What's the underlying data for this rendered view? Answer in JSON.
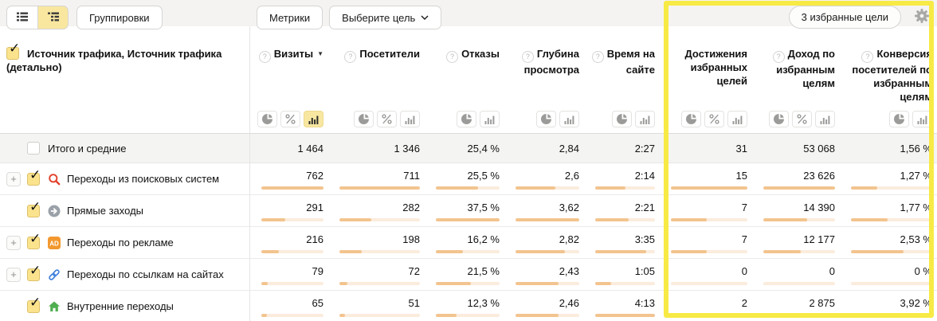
{
  "toolbar": {
    "view_toggle": [
      {
        "id": "list-view",
        "icon": "list-icon",
        "active": false
      },
      {
        "id": "tree-view",
        "icon": "tree-icon",
        "active": true
      }
    ],
    "groupings_label": "Группировки",
    "metrics_label": "Метрики",
    "select_goal_label": "Выберите цель",
    "favorite_goals_label": "3 избранные цели",
    "settings_icon": "gear-icon"
  },
  "colors": {
    "highlight_border": "#f8ea45",
    "bar_fill": "#f3c48f",
    "bar_track": "#fbecdd",
    "active_button_bg": "#f8e7a0",
    "totals_row_bg": "#f4f4f2",
    "toolbar_bg": "#f4f3f1"
  },
  "dimension_header": {
    "label": "Источник трафика, Источник трафика (детально)",
    "checked": true
  },
  "columns": [
    {
      "id": "visits",
      "label": "Визиты",
      "has_help": true,
      "sorted": "desc",
      "views": [
        "pie",
        "percent",
        "bars"
      ],
      "active_view": "bars"
    },
    {
      "id": "visitors",
      "label": "Посетители",
      "has_help": true,
      "sorted": null,
      "views": [
        "pie",
        "percent",
        "bars"
      ],
      "active_view": null
    },
    {
      "id": "bounces",
      "label": "Отказы",
      "has_help": true,
      "sorted": null,
      "views": [
        "pie",
        "bars"
      ],
      "active_view": null
    },
    {
      "id": "depth",
      "label": "Глубина просмотра",
      "has_help": true,
      "sorted": null,
      "views": [
        "pie",
        "bars"
      ],
      "active_view": null
    },
    {
      "id": "time_on_site",
      "label": "Время на сайте",
      "has_help": true,
      "sorted": null,
      "views": [
        "pie",
        "bars"
      ],
      "active_view": null
    },
    {
      "id": "goal_reaches",
      "label": "Достижения избранных целей",
      "has_help": false,
      "sorted": null,
      "views": [
        "pie",
        "percent",
        "bars"
      ],
      "active_view": null
    },
    {
      "id": "revenue",
      "label": "Доход по избранным целям",
      "has_help": true,
      "sorted": null,
      "views": [
        "pie",
        "percent",
        "bars"
      ],
      "active_view": null
    },
    {
      "id": "conversion",
      "label": "Конверсия посетителей по избранным целям",
      "has_help": true,
      "sorted": null,
      "views": [
        "pie",
        "bars"
      ],
      "active_view": null
    }
  ],
  "totals_row": {
    "label": "Итого и средние",
    "checked": false,
    "values": [
      "1 464",
      "1 346",
      "25,4 %",
      "2,84",
      "2:27",
      "31",
      "53 068",
      "1,56 %"
    ]
  },
  "rows": [
    {
      "label": "Переходы из поисковых систем",
      "icon": "search-icon",
      "expandable": true,
      "checked": true,
      "values": [
        "762",
        "711",
        "25,5 %",
        "2,6",
        "2:14",
        "15",
        "23 626",
        "1,27 %"
      ],
      "bars": [
        1,
        1,
        0.66,
        0.62,
        0.5,
        1,
        1,
        0.32
      ]
    },
    {
      "label": "Прямые заходы",
      "icon": "direct-arrow-icon",
      "expandable": false,
      "checked": true,
      "values": [
        "291",
        "282",
        "37,5 %",
        "3,62",
        "2:21",
        "7",
        "14 390",
        "1,77 %"
      ],
      "bars": [
        0.38,
        0.4,
        1,
        1,
        0.56,
        0.47,
        0.61,
        0.45
      ]
    },
    {
      "label": "Переходы по рекламе",
      "icon": "ad-badge-icon",
      "expandable": true,
      "checked": true,
      "values": [
        "216",
        "198",
        "16,2 %",
        "2,82",
        "3:35",
        "7",
        "12 177",
        "2,53 %"
      ],
      "bars": [
        0.28,
        0.28,
        0.42,
        0.78,
        0.85,
        0.47,
        0.52,
        0.65
      ]
    },
    {
      "label": "Переходы по ссылкам на сайтах",
      "icon": "link-icon",
      "expandable": true,
      "checked": true,
      "values": [
        "79",
        "72",
        "21,5 %",
        "2,43",
        "1:05",
        "0",
        "0",
        "0 %"
      ],
      "bars": [
        0.1,
        0.1,
        0.55,
        0.67,
        0.26,
        0,
        0,
        0
      ]
    },
    {
      "label": "Внутренние переходы",
      "icon": "home-icon",
      "expandable": false,
      "checked": true,
      "values": [
        "65",
        "51",
        "12,3 %",
        "2,46",
        "4:13",
        "2",
        "2 875",
        "3,92 %"
      ],
      "bars": [
        0.085,
        0.07,
        0.33,
        0.68,
        1,
        0.13,
        0.12,
        1
      ]
    }
  ]
}
